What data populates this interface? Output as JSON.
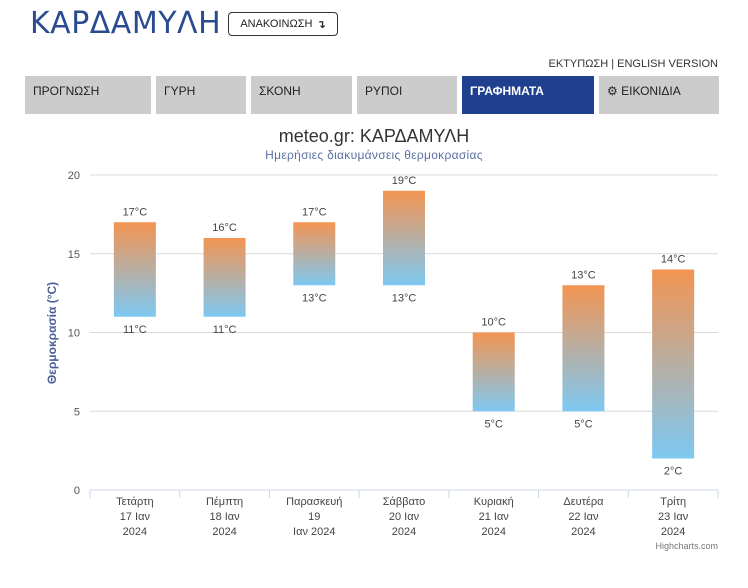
{
  "header": {
    "title": "ΚΑΡΔΑΜΥΛΗ",
    "announce_label": "ΑΝΑΚΟΙΝΩΣΗ",
    "announce_icon": "arrow-down-icon",
    "links": "ΕΚΤΥΠΩΣΗ | ENGLISH VERSION"
  },
  "tabs": [
    {
      "label": "ΠΡΟΓΝΩΣΗ"
    },
    {
      "label": "ΓΥΡΗ"
    },
    {
      "label": "ΣΚΟΝΗ"
    },
    {
      "label": "ΡΥΠΟΙ"
    },
    {
      "label": "ΓΡΑΦΗΜΑΤΑ",
      "active": true
    },
    {
      "label": "ΕΙΚΟΝΙΔΙΑ",
      "icon": "gear-icon"
    }
  ],
  "colors": {
    "brand": "#2b4b91",
    "active_tab": "#1f3f8f",
    "tab": "#cccccc",
    "bar_top": "#f39452",
    "bar_bottom": "#7ec8f2"
  },
  "credits": "Highcharts.com",
  "chart_data": {
    "type": "bar",
    "title": "meteo.gr: ΚΑΡΔΑΜΥΛΗ",
    "subtitle": "Ημερήσιες διακυμάνσεις θερμοκρασίας",
    "ylabel": "Θερμοκρασία (°C)",
    "ylim": [
      0,
      20
    ],
    "yticks": [
      0,
      5,
      10,
      15,
      20
    ],
    "grid": true,
    "unit": "°C",
    "categories": [
      [
        "Τετάρτη",
        "17 Ιαν",
        "2024"
      ],
      [
        "Πέμπτη",
        "18 Ιαν",
        "2024"
      ],
      [
        "Παρασκευή",
        "19",
        "Ιαν 2024"
      ],
      [
        "Σάββατο",
        "20 Ιαν",
        "2024"
      ],
      [
        "Κυριακή",
        "21 Ιαν",
        "2024"
      ],
      [
        "Δευτέρα",
        "22 Ιαν",
        "2024"
      ],
      [
        "Τρίτη",
        "23 Ιαν",
        "2024"
      ]
    ],
    "low": [
      11,
      11,
      13,
      13,
      5,
      5,
      2
    ],
    "high": [
      17,
      16,
      17,
      19,
      10,
      13,
      14
    ]
  }
}
